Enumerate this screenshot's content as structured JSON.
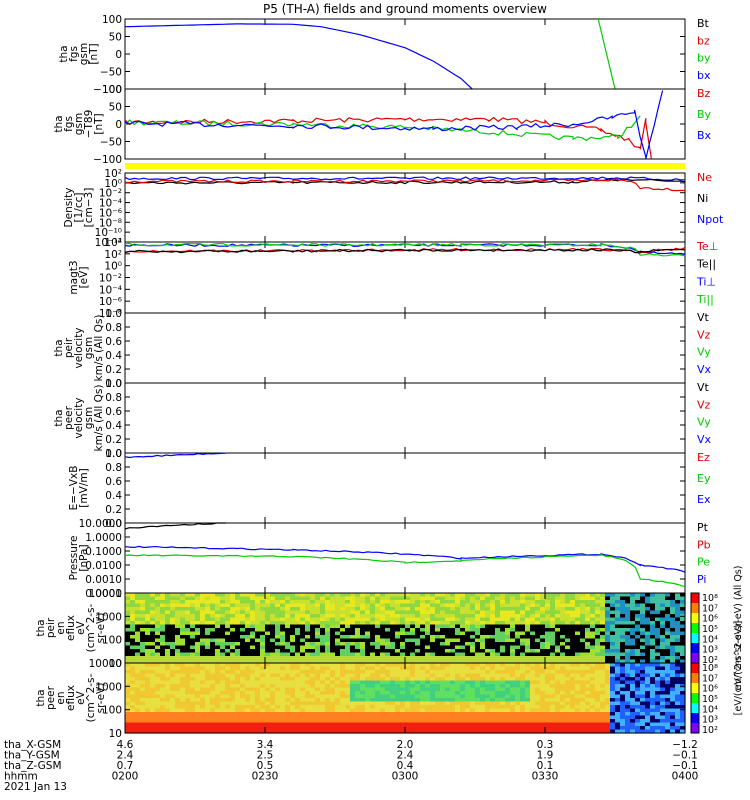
{
  "title": "P5 (TH-A) fields and ground moments overview",
  "colors": {
    "black": "#000000",
    "red": "#e00000",
    "green": "#00cc00",
    "blue": "#0000ff",
    "yellow": "#ffff00",
    "orange": "#ff9900"
  },
  "panels": [
    {
      "ylabel": [
        "tha",
        "fgs",
        "gsm",
        "[nT]"
      ],
      "ticks": [
        "100",
        "50",
        "0",
        "−50",
        "−100"
      ],
      "legend": [
        {
          "t": "Bt",
          "c": "black"
        },
        {
          "t": "bz",
          "c": "red"
        },
        {
          "t": "by",
          "c": "green"
        },
        {
          "t": "bx",
          "c": "blue"
        }
      ]
    },
    {
      "ylabel": [
        "tha",
        "fgs",
        "gsm",
        "−T89",
        "[nT]"
      ],
      "ticks": [
        "100",
        "50",
        "0",
        "−50",
        "−100"
      ],
      "legend": [
        {
          "t": "Bz",
          "c": "red"
        },
        {
          "t": "By",
          "c": "green"
        },
        {
          "t": "Bx",
          "c": "blue"
        }
      ]
    },
    {
      "ylabel": [
        "Density",
        "[1/cc]",
        "[cm−3]"
      ],
      "ticks": [
        "10²",
        "10⁰",
        "10⁻²",
        "10⁻⁴",
        "10⁻⁶",
        "10⁻⁸",
        "10⁻¹⁰",
        "10⁻¹²"
      ],
      "legend": [
        {
          "t": "Ne",
          "c": "red"
        },
        {
          "t": "Ni",
          "c": "black"
        },
        {
          "t": "Npot",
          "c": "blue"
        }
      ]
    },
    {
      "ylabel": [
        "magt3",
        "[eV]"
      ],
      "ticks": [
        "10⁴",
        "10²",
        "10⁰",
        "10⁻²",
        "10⁻⁴",
        "10⁻⁶",
        "10⁻⁸"
      ],
      "legend": [
        {
          "t": "Te⊥",
          "c": "red"
        },
        {
          "t": "Te||",
          "c": "black"
        },
        {
          "t": "Ti⊥",
          "c": "blue"
        },
        {
          "t": "Ti||",
          "c": "green"
        }
      ]
    },
    {
      "ylabel": [
        "tha",
        "peir",
        "velocity",
        "gsm",
        "km/s (All Qs)"
      ],
      "ticks": [
        "1.0",
        "0.8",
        "0.6",
        "0.4",
        "0.2",
        "0.0"
      ],
      "legend": [
        {
          "t": "Vt",
          "c": "black"
        },
        {
          "t": "Vz",
          "c": "red"
        },
        {
          "t": "Vy",
          "c": "green"
        },
        {
          "t": "Vx",
          "c": "blue"
        }
      ]
    },
    {
      "ylabel": [
        "tha",
        "peer",
        "velocity",
        "gsm",
        "km/s (All Qs)"
      ],
      "ticks": [
        "1.0",
        "0.8",
        "0.6",
        "0.4",
        "0.2",
        "0.0"
      ],
      "legend": [
        {
          "t": "Vt",
          "c": "black"
        },
        {
          "t": "Vz",
          "c": "red"
        },
        {
          "t": "Vy",
          "c": "green"
        },
        {
          "t": "Vx",
          "c": "blue"
        }
      ]
    },
    {
      "ylabel": [
        "E=−VxB",
        "[mV/m]"
      ],
      "ticks": [
        "1.0",
        "0.8",
        "0.6",
        "0.4",
        "0.2",
        "0.0"
      ],
      "legend": [
        {
          "t": "Ez",
          "c": "red"
        },
        {
          "t": "Ey",
          "c": "green"
        },
        {
          "t": "Ex",
          "c": "blue"
        }
      ]
    },
    {
      "ylabel": [
        "Pressure",
        "[nPa]"
      ],
      "ticks": [
        "10.0000",
        "1.0000",
        "0.1000",
        "0.0100",
        "0.0010",
        "0.0001"
      ],
      "legend": [
        {
          "t": "Pt",
          "c": "black"
        },
        {
          "t": "Pb",
          "c": "red"
        },
        {
          "t": "Pe",
          "c": "green"
        },
        {
          "t": "Pi",
          "c": "blue"
        }
      ]
    },
    {
      "ylabel": [
        "tha",
        "peir",
        "en",
        "eflux",
        "eV",
        "(cm^2-s-",
        "sr-eV)"
      ],
      "ticks": [
        "10000",
        "1000",
        "100",
        "10"
      ],
      "colorbar": {
        "ticks": [
          "10⁸",
          "10⁷",
          "10⁶",
          "10⁵",
          "10⁴",
          "10³",
          "10²"
        ],
        "label": "eV/(cm^2-s-sr-eV) (All Qs)"
      }
    },
    {
      "ylabel": [
        "tha",
        "peer",
        "en",
        "eflux",
        "eV",
        "(cm^2-s-",
        "sr-eV)"
      ],
      "ticks": [
        "10000",
        "1000",
        "100",
        "10"
      ],
      "colorbar": {
        "ticks": [
          "10⁸",
          "10⁷",
          "10⁶",
          "10⁵",
          "10⁴",
          "10³",
          "10²"
        ],
        "label": "[eV/(cm^2-s-sr-eV)]"
      }
    }
  ],
  "footer": {
    "rows": [
      {
        "label": "tha_X-GSM",
        "values": [
          "4.6",
          "3.4",
          "2.0",
          "0.3",
          "−1.2"
        ]
      },
      {
        "label": "tha_Y-GSM",
        "values": [
          "2.4",
          "2.5",
          "2.4",
          "1.9",
          "−0.1"
        ]
      },
      {
        "label": "tha_Z-GSM",
        "values": [
          "0.7",
          "0.5",
          "0.4",
          "0.1",
          "−0.1"
        ]
      },
      {
        "label": "hhmm",
        "values": [
          "0200",
          "0230",
          "0300",
          "0330",
          "0400"
        ]
      }
    ],
    "date": "2021 Jan 13"
  },
  "chart_data": [
    {
      "type": "line",
      "title": "P5 (TH-A) fields and ground moments overview",
      "ylabel": "tha fgs gsm [nT]",
      "ylim": [
        -100,
        100
      ],
      "x": [
        "0200",
        "0230",
        "0300",
        "0330",
        "0400"
      ],
      "series": [
        {
          "name": "bx",
          "points": [
            [
              0,
              78
            ],
            [
              0.1,
              82
            ],
            [
              0.2,
              86
            ],
            [
              0.3,
              85
            ],
            [
              0.35,
              78
            ],
            [
              0.42,
              55
            ],
            [
              0.5,
              18
            ],
            [
              0.55,
              -20
            ],
            [
              0.6,
              -70
            ],
            [
              0.62,
              -100
            ]
          ]
        },
        {
          "name": "by",
          "points": [
            [
              0.845,
              100
            ],
            [
              0.875,
              -100
            ]
          ]
        },
        {
          "name": "Bt",
          "points": []
        },
        {
          "name": "bz",
          "points": []
        }
      ]
    },
    {
      "type": "line",
      "ylabel": "tha fgs gsm −T89 [nT]",
      "ylim": [
        -120,
        100
      ],
      "series": [
        {
          "name": "Bz",
          "points": [
            [
              0,
              -5
            ],
            [
              0.3,
              0
            ],
            [
              0.5,
              5
            ],
            [
              0.65,
              5
            ],
            [
              0.75,
              -5
            ],
            [
              0.85,
              -30
            ],
            [
              0.9,
              -60
            ],
            [
              0.92,
              -90
            ],
            [
              0.93,
              0
            ],
            [
              0.94,
              -120
            ]
          ]
        },
        {
          "name": "By",
          "points": [
            [
              0,
              -5
            ],
            [
              0.3,
              -10
            ],
            [
              0.5,
              -20
            ],
            [
              0.65,
              -35
            ],
            [
              0.8,
              -55
            ],
            [
              0.88,
              -50
            ],
            [
              0.92,
              10
            ]
          ]
        },
        {
          "name": "Bx",
          "points": [
            [
              0,
              -8
            ],
            [
              0.3,
              -15
            ],
            [
              0.55,
              -25
            ],
            [
              0.7,
              -20
            ],
            [
              0.8,
              -10
            ],
            [
              0.87,
              10
            ],
            [
              0.91,
              30
            ],
            [
              0.93,
              -120
            ],
            [
              0.96,
              100
            ]
          ]
        }
      ]
    },
    {
      "type": "line",
      "ylabel": "Density [1/cc] [cm−3]",
      "yscale": "log",
      "ylim": [
        1e-12,
        100
      ],
      "series": [
        {
          "name": "Npot",
          "points": [
            [
              0,
              8
            ],
            [
              0.5,
              8
            ],
            [
              0.8,
              9
            ],
            [
              0.87,
              10
            ],
            [
              1,
              4
            ]
          ]
        },
        {
          "name": "Ni",
          "points": [
            [
              0,
              1
            ],
            [
              0.3,
              1.1
            ],
            [
              0.6,
              1.3
            ],
            [
              0.8,
              1.5
            ],
            [
              0.88,
              4
            ],
            [
              1,
              2
            ]
          ]
        },
        {
          "name": "Ne",
          "points": [
            [
              0,
              2
            ],
            [
              0.3,
              2.1
            ],
            [
              0.6,
              2.5
            ],
            [
              0.8,
              3
            ],
            [
              0.88,
              4
            ],
            [
              0.92,
              0.1
            ],
            [
              1,
              0.03
            ]
          ]
        }
      ]
    },
    {
      "type": "line",
      "ylabel": "magt3 [eV]",
      "yscale": "log",
      "ylim": [
        1e-08,
        10000
      ],
      "series": [
        {
          "name": "Ti⊥",
          "points": [
            [
              0,
              3000
            ],
            [
              0.3,
              2800
            ],
            [
              0.6,
              3000
            ],
            [
              0.85,
              3200
            ],
            [
              0.92,
              150
            ],
            [
              1,
              80
            ]
          ]
        },
        {
          "name": "Ti||",
          "points": [
            [
              0,
              3500
            ],
            [
              0.3,
              3200
            ],
            [
              0.6,
              3300
            ],
            [
              0.85,
              3300
            ],
            [
              0.92,
              80
            ],
            [
              1,
              40
            ]
          ]
        },
        {
          "name": "Te⊥",
          "points": [
            [
              0,
              300
            ],
            [
              0.3,
              320
            ],
            [
              0.6,
              500
            ],
            [
              0.85,
              500
            ],
            [
              0.92,
              200
            ],
            [
              1,
              800
            ]
          ]
        },
        {
          "name": "Te||",
          "points": [
            [
              0,
              250
            ],
            [
              0.3,
              280
            ],
            [
              0.6,
              450
            ],
            [
              0.85,
              450
            ],
            [
              0.92,
              200
            ],
            [
              1,
              600
            ]
          ]
        }
      ]
    },
    {
      "type": "line",
      "ylabel": "tha peir velocity gsm km/s (All Qs)",
      "ylim": [
        0,
        1
      ],
      "series": []
    },
    {
      "type": "line",
      "ylabel": "tha peer velocity gsm km/s (All Qs)",
      "ylim": [
        0,
        1
      ],
      "series": []
    },
    {
      "type": "line",
      "ylabel": "E=−VxB [mV/m]",
      "ylim": [
        0,
        1
      ],
      "series": [
        {
          "name": "Ex",
          "points": [
            [
              0,
              0.94
            ],
            [
              0.18,
              1.0
            ]
          ]
        }
      ]
    },
    {
      "type": "line",
      "ylabel": "Pressure [nPa]",
      "yscale": "log",
      "ylim": [
        0.0001,
        10
      ],
      "series": [
        {
          "name": "Pt",
          "points": [
            [
              0,
              4
            ],
            [
              0.18,
              10
            ]
          ]
        },
        {
          "name": "Pi",
          "points": [
            [
              0,
              0.2
            ],
            [
              0.3,
              0.12
            ],
            [
              0.6,
              0.03
            ],
            [
              0.85,
              0.06
            ],
            [
              0.92,
              0.01
            ],
            [
              1,
              0.003
            ]
          ]
        },
        {
          "name": "Pe",
          "points": [
            [
              0,
              0.05
            ],
            [
              0.3,
              0.04
            ],
            [
              0.5,
              0.015
            ],
            [
              0.6,
              0.02
            ],
            [
              0.85,
              0.05
            ],
            [
              0.92,
              0.001
            ],
            [
              1,
              0.0003
            ]
          ]
        }
      ]
    },
    {
      "type": "heatmap",
      "ylabel": "tha peir en eflux eV (cm^2-s-sr-eV)",
      "yscale": "log",
      "ylim": [
        5,
        30000
      ],
      "zlim": [
        100,
        100000000
      ]
    },
    {
      "type": "heatmap",
      "ylabel": "tha peer en eflux eV (cm^2-s-sr-eV)",
      "yscale": "log",
      "ylim": [
        5,
        30000
      ],
      "zlim": [
        100,
        100000000
      ]
    }
  ]
}
